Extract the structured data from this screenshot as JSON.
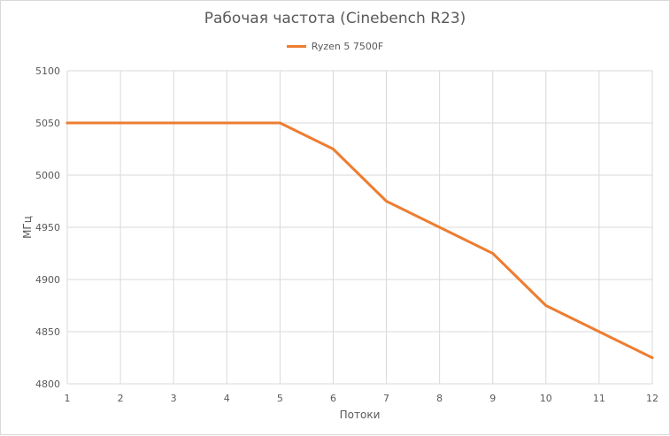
{
  "chart_data": {
    "type": "line",
    "title": "Рабочая частота (Cinebench R23)",
    "xlabel": "Потоки",
    "ylabel": "МГц",
    "x": [
      1,
      2,
      3,
      4,
      5,
      6,
      7,
      8,
      9,
      10,
      11,
      12
    ],
    "x_ticks": [
      "1",
      "2",
      "3",
      "4",
      "5",
      "6",
      "7",
      "8",
      "9",
      "10",
      "11",
      "12"
    ],
    "ylim": [
      4800,
      5100
    ],
    "y_ticks": [
      4800,
      4850,
      4900,
      4950,
      5000,
      5050,
      5100
    ],
    "grid": true,
    "legend_position": "top-center",
    "series": [
      {
        "name": "Ryzen 5 7500F",
        "color": "#ED7D31",
        "values": [
          5050,
          5050,
          5050,
          5050,
          5050,
          5025,
          4975,
          4950,
          4925,
          4875,
          4850,
          4825
        ]
      }
    ]
  },
  "colors": {
    "grid": "#d9d9d9",
    "text": "#595959"
  }
}
